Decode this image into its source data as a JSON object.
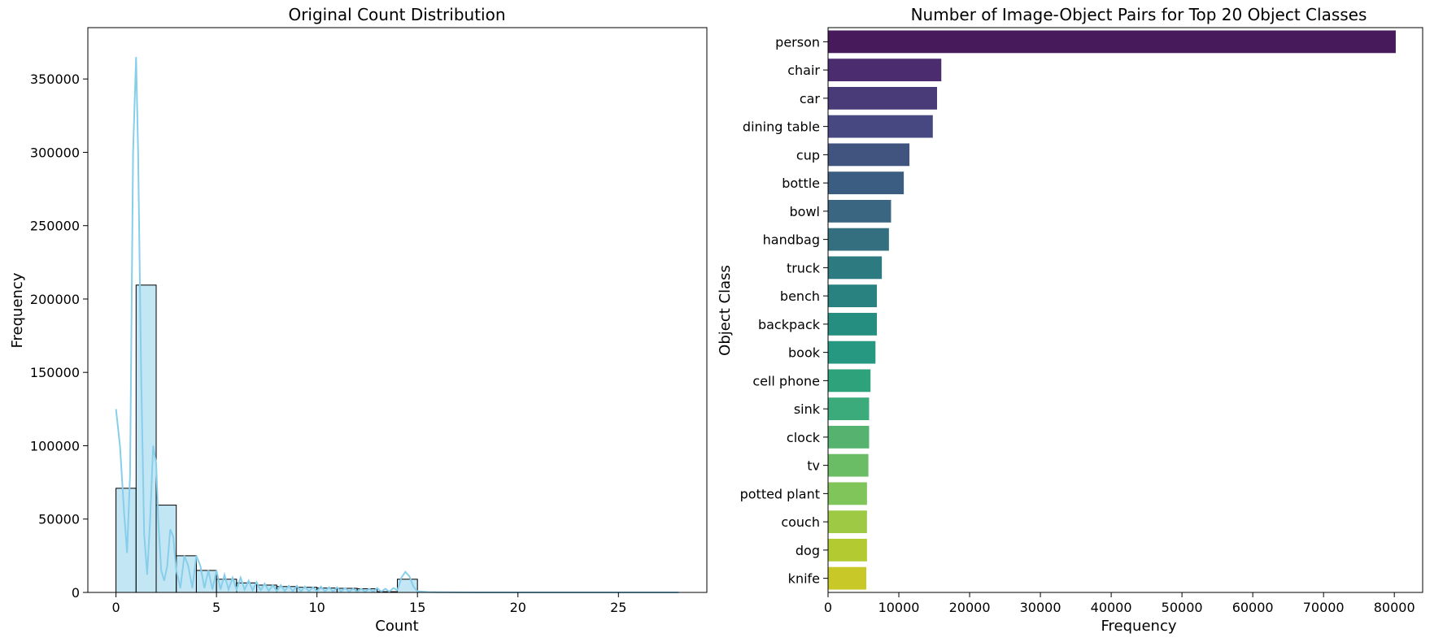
{
  "chart_data": [
    {
      "type": "bar",
      "subtype": "histogram-with-kde",
      "title": "Original Count Distribution",
      "xlabel": "Count",
      "ylabel": "Frequency",
      "xlim": [
        -1.4,
        29.4
      ],
      "ylim": [
        0,
        385000
      ],
      "xticks": [
        0,
        5,
        10,
        15,
        20,
        25
      ],
      "yticks": [
        0,
        50000,
        100000,
        150000,
        200000,
        250000,
        300000,
        350000
      ],
      "bar_color": "#87ceeb",
      "kde_color": "#87ceeb",
      "edge_color": "#000000",
      "grid": false,
      "bins": [
        {
          "x0": 0,
          "x1": 1,
          "value": 71000
        },
        {
          "x0": 1,
          "x1": 2,
          "value": 209500
        },
        {
          "x0": 2,
          "x1": 3,
          "value": 59500
        },
        {
          "x0": 3,
          "x1": 4,
          "value": 25000
        },
        {
          "x0": 4,
          "x1": 5,
          "value": 15000
        },
        {
          "x0": 5,
          "x1": 6,
          "value": 9000
        },
        {
          "x0": 6,
          "x1": 7,
          "value": 6500
        },
        {
          "x0": 7,
          "x1": 8,
          "value": 5000
        },
        {
          "x0": 8,
          "x1": 9,
          "value": 4000
        },
        {
          "x0": 9,
          "x1": 10,
          "value": 3500
        },
        {
          "x0": 10,
          "x1": 11,
          "value": 3000
        },
        {
          "x0": 11,
          "x1": 12,
          "value": 2800
        },
        {
          "x0": 12,
          "x1": 13,
          "value": 2500
        },
        {
          "x0": 13,
          "x1": 14,
          "value": 500
        },
        {
          "x0": 14,
          "x1": 15,
          "value": 9000
        },
        {
          "x0": 15,
          "x1": 16,
          "value": 150
        },
        {
          "x0": 16,
          "x1": 17,
          "value": 80
        },
        {
          "x0": 17,
          "x1": 18,
          "value": 50
        },
        {
          "x0": 18,
          "x1": 19,
          "value": 30
        },
        {
          "x0": 19,
          "x1": 20,
          "value": 20
        },
        {
          "x0": 20,
          "x1": 21,
          "value": 15
        },
        {
          "x0": 21,
          "x1": 22,
          "value": 10
        },
        {
          "x0": 22,
          "x1": 23,
          "value": 8
        },
        {
          "x0": 23,
          "x1": 24,
          "value": 6
        },
        {
          "x0": 24,
          "x1": 25,
          "value": 5
        },
        {
          "x0": 25,
          "x1": 26,
          "value": 4
        },
        {
          "x0": 26,
          "x1": 27,
          "value": 3
        },
        {
          "x0": 27,
          "x1": 28,
          "value": 2
        }
      ],
      "kde": {
        "x": [
          0,
          0.2,
          0.4,
          0.55,
          0.7,
          0.85,
          1.0,
          1.1,
          1.25,
          1.4,
          1.55,
          1.7,
          1.85,
          2.0,
          2.1,
          2.25,
          2.4,
          2.55,
          2.7,
          2.85,
          3.0,
          3.2,
          3.4,
          3.6,
          3.8,
          4.0,
          4.2,
          4.4,
          4.6,
          4.8,
          5.0,
          5.2,
          5.4,
          5.6,
          5.8,
          6.0,
          6.2,
          6.4,
          6.6,
          6.8,
          7.0,
          7.2,
          7.4,
          7.6,
          7.8,
          8.0,
          8.2,
          8.4,
          8.6,
          8.8,
          9.0,
          9.2,
          9.4,
          9.6,
          9.8,
          10.0,
          10.2,
          10.4,
          10.6,
          10.8,
          11.0,
          11.2,
          11.4,
          11.6,
          11.8,
          12.0,
          12.2,
          12.4,
          12.6,
          12.8,
          13.0,
          13.2,
          13.4,
          13.6,
          13.8,
          14.0,
          14.2,
          14.4,
          14.6,
          14.8,
          15.0,
          15.5,
          16.0,
          17.0,
          18.0,
          20.0,
          22.0,
          25.0,
          28.0
        ],
        "y": [
          125000,
          100000,
          55000,
          27000,
          80000,
          300000,
          365000,
          300000,
          150000,
          40000,
          12000,
          50000,
          100000,
          88000,
          50000,
          15000,
          8000,
          18000,
          43000,
          38000,
          15000,
          3000,
          25000,
          18000,
          3000,
          25000,
          18000,
          3000,
          15000,
          2000,
          15000,
          2000,
          12000,
          2000,
          10000,
          2000,
          10000,
          2000,
          8000,
          1500,
          7000,
          1500,
          6000,
          1000,
          5000,
          1000,
          5000,
          1000,
          4500,
          800,
          4500,
          800,
          4000,
          800,
          3500,
          700,
          4000,
          700,
          3500,
          600,
          3500,
          600,
          3000,
          500,
          2500,
          500,
          2500,
          500,
          2500,
          500,
          3000,
          500,
          2500,
          500,
          3000,
          1500,
          10000,
          14000,
          11000,
          4000,
          800,
          300,
          150,
          50,
          20,
          10,
          5,
          2,
          0
        ]
      }
    },
    {
      "type": "bar",
      "orientation": "horizontal",
      "title": "Number of Image-Object Pairs for Top 20 Object Classes",
      "xlabel": "Frequency",
      "ylabel": "Object Class",
      "xlim": [
        0,
        84000
      ],
      "xticks": [
        0,
        10000,
        20000,
        30000,
        40000,
        50000,
        60000,
        70000,
        80000
      ],
      "palette": "viridis",
      "grid": false,
      "categories": [
        "person",
        "chair",
        "car",
        "dining table",
        "cup",
        "bottle",
        "bowl",
        "handbag",
        "truck",
        "bench",
        "backpack",
        "book",
        "cell phone",
        "sink",
        "clock",
        "tv",
        "potted plant",
        "couch",
        "dog",
        "knife"
      ],
      "values": [
        80200,
        16000,
        15400,
        14800,
        11500,
        10700,
        8900,
        8600,
        7600,
        6900,
        6900,
        6700,
        6000,
        5800,
        5800,
        5700,
        5500,
        5500,
        5500,
        5400
      ],
      "colors": [
        "#471a5c",
        "#4b2c6f",
        "#493a78",
        "#474882",
        "#41537f",
        "#3c5d82",
        "#3a6681",
        "#336f7f",
        "#2d7a80",
        "#29827f",
        "#268e80",
        "#269881",
        "#2da27b",
        "#3bab7c",
        "#55b26f",
        "#6abd64",
        "#80c559",
        "#9dc944",
        "#b3ca30",
        "#c9c829"
      ]
    }
  ]
}
